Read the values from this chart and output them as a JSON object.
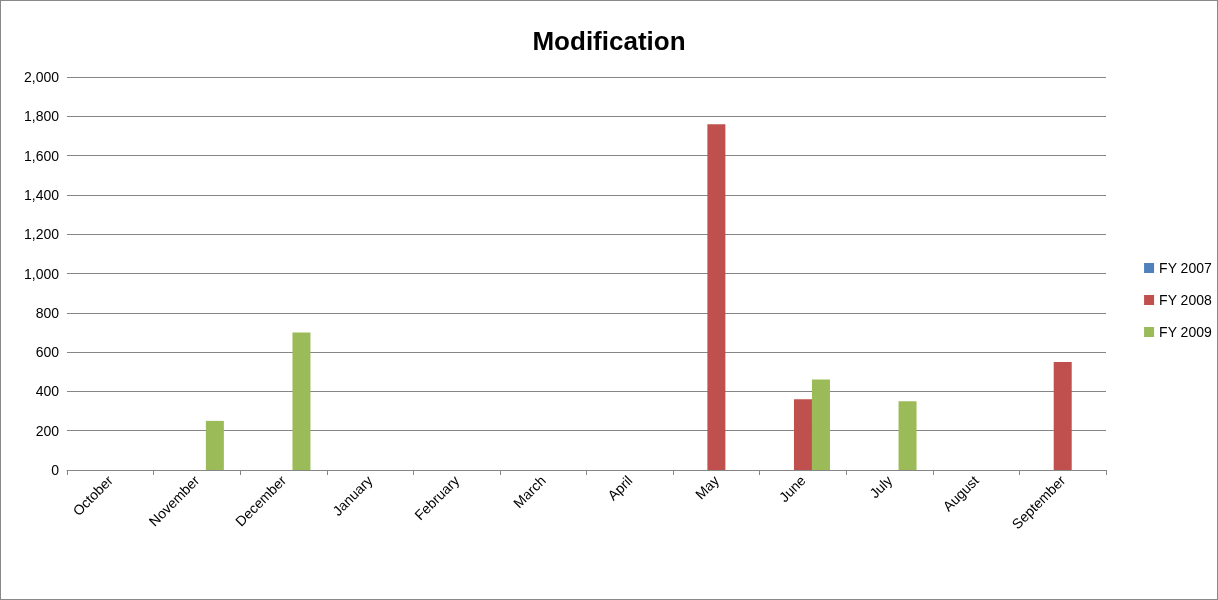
{
  "chart_data": {
    "type": "bar",
    "title": "Modification",
    "categories": [
      "October",
      "November",
      "December",
      "January",
      "February",
      "March",
      "April",
      "May",
      "June",
      "July",
      "August",
      "September"
    ],
    "series": [
      {
        "name": "FY 2007",
        "color": "#4f81bd",
        "values": [
          0,
          0,
          0,
          0,
          0,
          0,
          0,
          0,
          0,
          0,
          0,
          0
        ]
      },
      {
        "name": "FY 2008",
        "color": "#c0504d",
        "values": [
          0,
          0,
          0,
          0,
          0,
          0,
          0,
          1760,
          360,
          0,
          0,
          550
        ]
      },
      {
        "name": "FY 2009",
        "color": "#9bbb59",
        "values": [
          0,
          250,
          700,
          0,
          0,
          0,
          0,
          0,
          460,
          350,
          0,
          0
        ]
      }
    ],
    "ylim": [
      0,
      2000
    ],
    "yticks": [
      0,
      200,
      400,
      600,
      800,
      {
        "value": 1000,
        "label": "1,000"
      },
      {
        "value": 1200,
        "label": "1,200"
      },
      {
        "value": 1400,
        "label": "1,400"
      },
      {
        "value": 1600,
        "label": "1,600"
      },
      {
        "value": 1800,
        "label": "1,800"
      },
      {
        "value": 2000,
        "label": "2,000"
      }
    ],
    "grid": "y",
    "legend": "right"
  }
}
